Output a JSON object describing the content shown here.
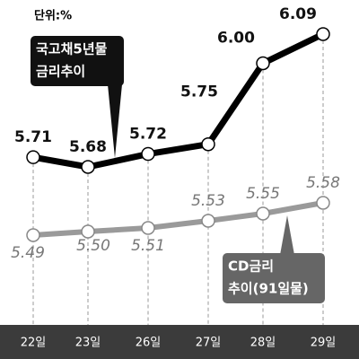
{
  "chart_data": {
    "type": "line",
    "unit": "단위:%",
    "categories": [
      "22일",
      "23일",
      "26일",
      "27일",
      "28일",
      "29일"
    ],
    "series": [
      {
        "name": [
          "국고채5년물",
          "금리추이"
        ],
        "color": "#000000",
        "values": [
          5.71,
          5.68,
          5.72,
          5.75,
          6.0,
          6.09
        ],
        "value_labels": [
          "5.71",
          "5.68",
          "5.72",
          "5.75",
          "6.00",
          "6.09"
        ]
      },
      {
        "name": [
          "CD금리",
          "추이(91일물)"
        ],
        "color": "#9a9a9a",
        "values": [
          5.49,
          5.5,
          5.51,
          5.53,
          5.55,
          5.58
        ],
        "value_labels": [
          "5.49",
          "5.50",
          "5.51",
          "5.53",
          "5.55",
          "5.58"
        ]
      }
    ]
  }
}
